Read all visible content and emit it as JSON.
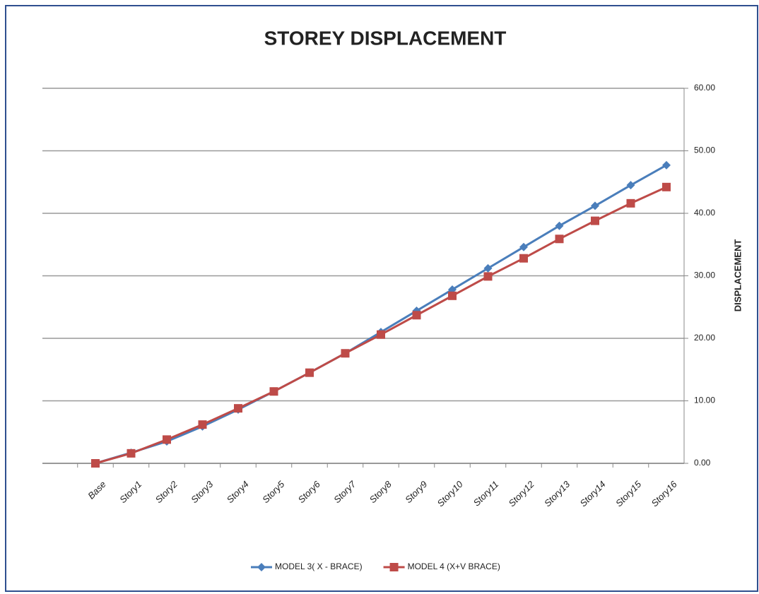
{
  "chart_data": {
    "type": "line",
    "title": "STOREY DISPLACEMENT",
    "y_axis_label": "DISPLACEMENT",
    "categories": [
      "Base",
      "Story1",
      "Story2",
      "Story3",
      "Story4",
      "Story5",
      "Story6",
      "Story7",
      "Story8",
      "Story9",
      "Story10",
      "Story11",
      "Story12",
      "Story13",
      "Story14",
      "Story15",
      "Story16"
    ],
    "series": [
      {
        "name": "MODEL 3( X - BRACE)",
        "color": "#4a7ebb",
        "marker": "diamond",
        "values": [
          0,
          1.7,
          3.5,
          5.9,
          8.6,
          11.5,
          14.5,
          17.6,
          21.0,
          24.4,
          27.8,
          31.2,
          34.6,
          38.0,
          41.2,
          44.5,
          47.7
        ]
      },
      {
        "name": "MODEL 4 (X+V BRACE)",
        "color": "#be4b48",
        "marker": "square",
        "values": [
          0,
          1.6,
          3.8,
          6.2,
          8.8,
          11.5,
          14.5,
          17.6,
          20.6,
          23.7,
          26.8,
          29.9,
          32.8,
          35.9,
          38.8,
          41.6,
          44.2
        ]
      }
    ],
    "ylim": [
      0,
      60
    ],
    "yticks": [
      {
        "value": 0,
        "label": "0.00"
      },
      {
        "value": 10,
        "label": "10.00"
      },
      {
        "value": 20,
        "label": "20.00"
      },
      {
        "value": 30,
        "label": "30.00"
      },
      {
        "value": 40,
        "label": "40.00"
      },
      {
        "value": 50,
        "label": "50.00"
      },
      {
        "value": 60,
        "label": "60.00"
      }
    ],
    "y_axis_side": "right",
    "grid": true,
    "legend": "bottom"
  }
}
